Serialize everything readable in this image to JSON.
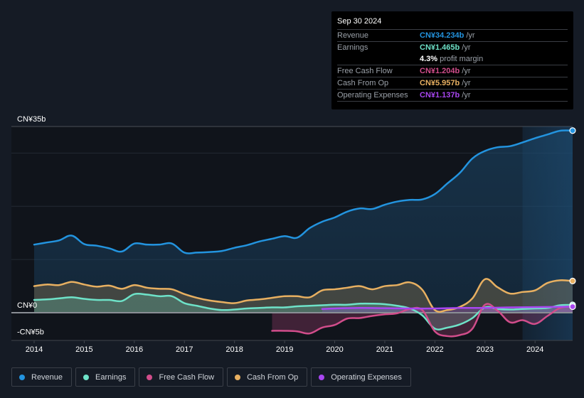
{
  "tooltip": {
    "date": "Sep 30 2024",
    "rows": [
      {
        "label": "Revenue",
        "value": "CN¥34.234b",
        "unit": "/yr",
        "color": "#2394df"
      },
      {
        "label": "Earnings",
        "value": "CN¥1.465b",
        "unit": "/yr",
        "color": "#6ee2c8"
      },
      {
        "label": "",
        "margin_value": "4.3%",
        "margin_text": "profit margin"
      },
      {
        "label": "Free Cash Flow",
        "value": "CN¥1.204b",
        "unit": "/yr",
        "color": "#d14d8b"
      },
      {
        "label": "Cash From Op",
        "value": "CN¥5.957b",
        "unit": "/yr",
        "color": "#e8b061"
      },
      {
        "label": "Operating Expenses",
        "value": "CN¥1.137b",
        "unit": "/yr",
        "color": "#a846f0"
      }
    ]
  },
  "legend": [
    {
      "label": "Revenue",
      "color": "#2394df"
    },
    {
      "label": "Earnings",
      "color": "#6ee2c8"
    },
    {
      "label": "Free Cash Flow",
      "color": "#d14d8b"
    },
    {
      "label": "Cash From Op",
      "color": "#e8b061"
    },
    {
      "label": "Operating Expenses",
      "color": "#a846f0"
    }
  ],
  "chart_data": {
    "type": "area",
    "title": "",
    "xlabel": "",
    "ylabel": "",
    "y_tick_labels": [
      {
        "value": 35,
        "label": "CN¥35b"
      },
      {
        "value": 0,
        "label": "CN¥0"
      },
      {
        "value": -5,
        "label": "-CN¥5b"
      }
    ],
    "ylim": [
      -5,
      35
    ],
    "xlim": [
      2014.0,
      2024.75
    ],
    "x_ticks": [
      "2014",
      "2015",
      "2016",
      "2017",
      "2018",
      "2019",
      "2020",
      "2021",
      "2022",
      "2023",
      "2024"
    ],
    "grid": true,
    "highlight_start": 2023.75,
    "series": [
      {
        "name": "Revenue",
        "color": "#2394df",
        "points": [
          [
            2014.0,
            12.8
          ],
          [
            2014.25,
            13.2
          ],
          [
            2014.5,
            13.6
          ],
          [
            2014.75,
            14.5
          ],
          [
            2015.0,
            12.9
          ],
          [
            2015.25,
            12.6
          ],
          [
            2015.5,
            12.1
          ],
          [
            2015.75,
            11.5
          ],
          [
            2016.0,
            13.0
          ],
          [
            2016.25,
            12.8
          ],
          [
            2016.5,
            12.8
          ],
          [
            2016.75,
            13.0
          ],
          [
            2017.0,
            11.3
          ],
          [
            2017.25,
            11.3
          ],
          [
            2017.5,
            11.4
          ],
          [
            2017.75,
            11.6
          ],
          [
            2018.0,
            12.2
          ],
          [
            2018.25,
            12.7
          ],
          [
            2018.5,
            13.4
          ],
          [
            2018.75,
            13.9
          ],
          [
            2019.0,
            14.4
          ],
          [
            2019.25,
            14.1
          ],
          [
            2019.5,
            15.9
          ],
          [
            2019.75,
            17.1
          ],
          [
            2020.0,
            17.9
          ],
          [
            2020.25,
            19.0
          ],
          [
            2020.5,
            19.6
          ],
          [
            2020.75,
            19.5
          ],
          [
            2021.0,
            20.3
          ],
          [
            2021.25,
            20.9
          ],
          [
            2021.5,
            21.2
          ],
          [
            2021.75,
            21.3
          ],
          [
            2022.0,
            22.3
          ],
          [
            2022.25,
            24.3
          ],
          [
            2022.5,
            26.3
          ],
          [
            2022.75,
            29.0
          ],
          [
            2023.0,
            30.4
          ],
          [
            2023.25,
            31.1
          ],
          [
            2023.5,
            31.3
          ],
          [
            2023.75,
            32.0
          ],
          [
            2024.0,
            32.8
          ],
          [
            2024.25,
            33.5
          ],
          [
            2024.5,
            34.2
          ],
          [
            2024.75,
            34.23
          ]
        ]
      },
      {
        "name": "Cash From Op",
        "color": "#e8b061",
        "points": [
          [
            2014.0,
            5.0
          ],
          [
            2014.25,
            5.3
          ],
          [
            2014.5,
            5.2
          ],
          [
            2014.75,
            5.8
          ],
          [
            2015.0,
            5.3
          ],
          [
            2015.25,
            4.9
          ],
          [
            2015.5,
            5.1
          ],
          [
            2015.75,
            4.5
          ],
          [
            2016.0,
            5.2
          ],
          [
            2016.25,
            4.7
          ],
          [
            2016.5,
            4.5
          ],
          [
            2016.75,
            4.4
          ],
          [
            2017.0,
            3.5
          ],
          [
            2017.25,
            2.8
          ],
          [
            2017.5,
            2.3
          ],
          [
            2017.75,
            2.0
          ],
          [
            2018.0,
            1.8
          ],
          [
            2018.25,
            2.3
          ],
          [
            2018.5,
            2.5
          ],
          [
            2018.75,
            2.8
          ],
          [
            2019.0,
            3.1
          ],
          [
            2019.25,
            3.1
          ],
          [
            2019.5,
            2.9
          ],
          [
            2019.75,
            4.2
          ],
          [
            2020.0,
            4.4
          ],
          [
            2020.25,
            4.7
          ],
          [
            2020.5,
            5.0
          ],
          [
            2020.75,
            4.4
          ],
          [
            2021.0,
            5.0
          ],
          [
            2021.25,
            5.2
          ],
          [
            2021.5,
            5.7
          ],
          [
            2021.75,
            4.3
          ],
          [
            2022.0,
            0.5
          ],
          [
            2022.25,
            0.5
          ],
          [
            2022.5,
            1.1
          ],
          [
            2022.75,
            2.7
          ],
          [
            2023.0,
            6.3
          ],
          [
            2023.25,
            4.8
          ],
          [
            2023.5,
            3.6
          ],
          [
            2023.75,
            3.9
          ],
          [
            2024.0,
            4.2
          ],
          [
            2024.25,
            5.6
          ],
          [
            2024.5,
            6.1
          ],
          [
            2024.75,
            5.96
          ]
        ]
      },
      {
        "name": "Earnings",
        "color": "#6ee2c8",
        "points": [
          [
            2014.0,
            2.4
          ],
          [
            2014.25,
            2.5
          ],
          [
            2014.5,
            2.7
          ],
          [
            2014.75,
            2.9
          ],
          [
            2015.0,
            2.6
          ],
          [
            2015.25,
            2.4
          ],
          [
            2015.5,
            2.4
          ],
          [
            2015.75,
            2.2
          ],
          [
            2016.0,
            3.5
          ],
          [
            2016.25,
            3.4
          ],
          [
            2016.5,
            3.1
          ],
          [
            2016.75,
            3.1
          ],
          [
            2017.0,
            1.8
          ],
          [
            2017.25,
            1.3
          ],
          [
            2017.5,
            0.8
          ],
          [
            2017.75,
            0.5
          ],
          [
            2018.0,
            0.6
          ],
          [
            2018.25,
            0.8
          ],
          [
            2018.5,
            0.9
          ],
          [
            2018.75,
            1.0
          ],
          [
            2019.0,
            1.0
          ],
          [
            2019.25,
            1.2
          ],
          [
            2019.5,
            1.3
          ],
          [
            2019.75,
            1.4
          ],
          [
            2020.0,
            1.5
          ],
          [
            2020.25,
            1.5
          ],
          [
            2020.5,
            1.7
          ],
          [
            2020.75,
            1.7
          ],
          [
            2021.0,
            1.6
          ],
          [
            2021.25,
            1.3
          ],
          [
            2021.5,
            0.8
          ],
          [
            2021.75,
            -0.5
          ],
          [
            2022.0,
            -3.0
          ],
          [
            2022.25,
            -2.8
          ],
          [
            2022.5,
            -2.2
          ],
          [
            2022.75,
            -1.0
          ],
          [
            2023.0,
            1.0
          ],
          [
            2023.25,
            0.7
          ],
          [
            2023.5,
            0.6
          ],
          [
            2023.75,
            0.7
          ],
          [
            2024.0,
            0.8
          ],
          [
            2024.25,
            0.9
          ],
          [
            2024.5,
            1.4
          ],
          [
            2024.75,
            1.47
          ]
        ]
      },
      {
        "name": "Free Cash Flow",
        "color": "#d14d8b",
        "points": [
          [
            2018.75,
            -3.4
          ],
          [
            2019.0,
            -3.4
          ],
          [
            2019.25,
            -3.5
          ],
          [
            2019.5,
            -3.9
          ],
          [
            2019.75,
            -2.8
          ],
          [
            2020.0,
            -2.3
          ],
          [
            2020.25,
            -1.1
          ],
          [
            2020.5,
            -1.0
          ],
          [
            2020.75,
            -0.6
          ],
          [
            2021.0,
            -0.3
          ],
          [
            2021.25,
            -0.1
          ],
          [
            2021.5,
            0.7
          ],
          [
            2021.75,
            0.5
          ],
          [
            2022.0,
            -3.5
          ],
          [
            2022.25,
            -4.4
          ],
          [
            2022.5,
            -4.2
          ],
          [
            2022.75,
            -3.0
          ],
          [
            2023.0,
            1.5
          ],
          [
            2023.25,
            0.4
          ],
          [
            2023.5,
            -1.8
          ],
          [
            2023.75,
            -1.4
          ],
          [
            2024.0,
            -2.1
          ],
          [
            2024.25,
            -0.6
          ],
          [
            2024.5,
            0.9
          ],
          [
            2024.75,
            1.2
          ]
        ]
      },
      {
        "name": "Operating Expenses",
        "color": "#a846f0",
        "points": [
          [
            2019.75,
            0.7
          ],
          [
            2020.0,
            0.8
          ],
          [
            2020.5,
            0.9
          ],
          [
            2021.0,
            0.85
          ],
          [
            2021.5,
            0.8
          ],
          [
            2022.0,
            0.8
          ],
          [
            2022.5,
            0.9
          ],
          [
            2023.0,
            0.9
          ],
          [
            2023.5,
            1.0
          ],
          [
            2024.0,
            1.05
          ],
          [
            2024.75,
            1.14
          ]
        ]
      }
    ]
  }
}
